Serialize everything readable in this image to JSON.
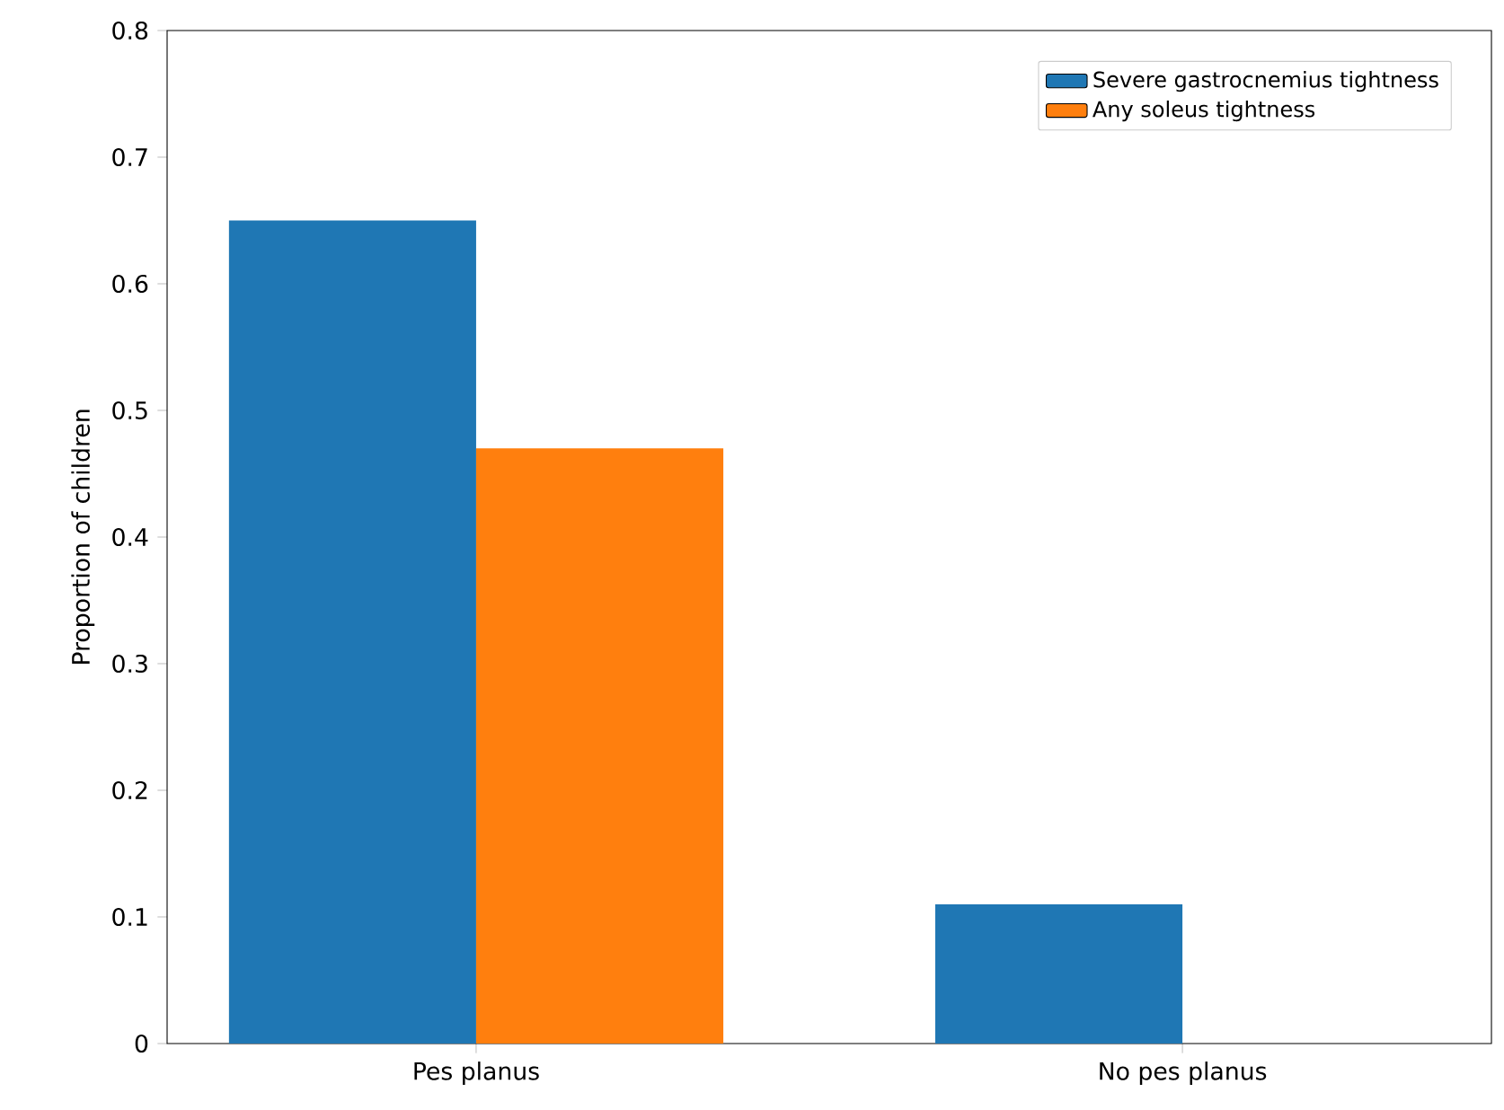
{
  "chart_data": {
    "type": "bar",
    "ylabel": "Proportion of children",
    "categories": [
      "Pes planus",
      "No pes planus"
    ],
    "series": [
      {
        "name": "Severe gastrocnemius tightness",
        "color": "#1f77b4",
        "values": [
          0.65,
          0.11
        ]
      },
      {
        "name": "Any soleus tightness",
        "color": "#ff7f0e",
        "values": [
          0.47,
          0
        ]
      }
    ],
    "ylim": [
      0,
      0.8
    ],
    "yticks": [
      0,
      0.1,
      0.2,
      0.3,
      0.4,
      0.5,
      0.6,
      0.7,
      0.8
    ],
    "legend": "top right"
  }
}
